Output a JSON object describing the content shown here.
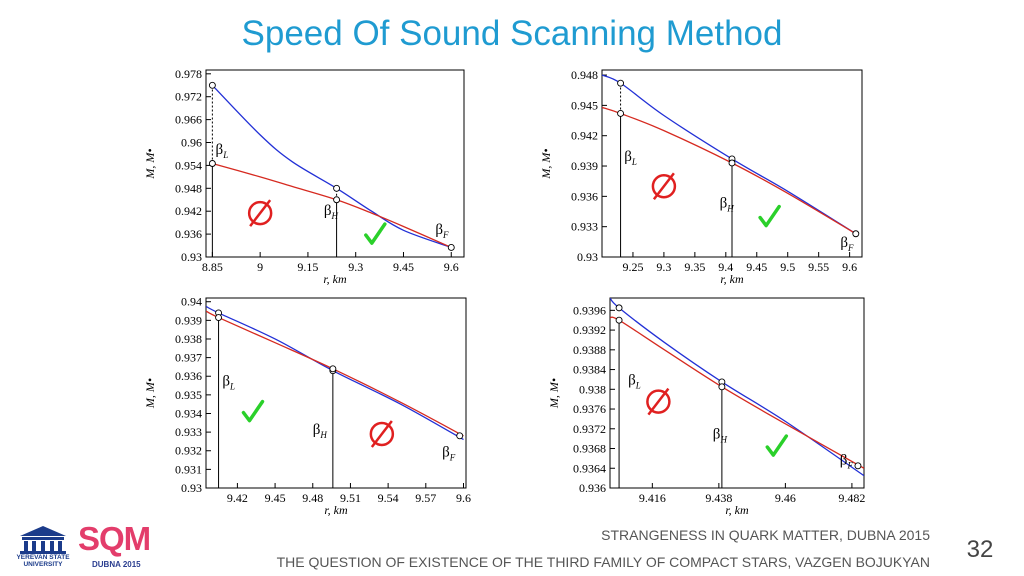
{
  "title": "Speed Of Sound Scanning Method",
  "footer_line1": "STRANGENESS IN QUARK MATTER,  DUBNA 2015",
  "footer_line2": "THE QUESTION OF EXISTENCE OF THE THIRD FAMILY OF COMPACT STARS, VAZGEN BOJUKYAN",
  "page_number": "32",
  "logos": {
    "ysu_text": "YEREVAN STATE UNIVERSITY",
    "sqm_text": "SQM",
    "sqm_sub": "DUBNA 2015"
  },
  "colors": {
    "title": "#1f9bd1",
    "curve_blue": "#2230d6",
    "curve_red": "#d62a20",
    "empty_set": "#e02020",
    "check": "#2ad02a"
  },
  "chart_data": [
    {
      "type": "line",
      "xlabel": "r, km",
      "ylabel": "M, M•",
      "xlim": [
        8.83,
        9.64
      ],
      "ylim": [
        0.93,
        0.979
      ],
      "x_ticks": [
        8.85,
        9,
        9.15,
        9.3,
        9.45,
        9.6
      ],
      "x_tick_labels": [
        "8.85",
        "9",
        "9.15",
        "9.3",
        "9.45",
        "9.6"
      ],
      "y_ticks": [
        0.93,
        0.936,
        0.942,
        0.948,
        0.954,
        0.96,
        0.966,
        0.972,
        0.978
      ],
      "y_tick_labels": [
        "0.93",
        "0.936",
        "0.942",
        "0.948",
        "0.954",
        "0.96",
        "0.966",
        "0.972",
        "0.978"
      ],
      "series": [
        {
          "color": "blue",
          "x": [
            8.85,
            9.0,
            9.1,
            9.24,
            9.35,
            9.45,
            9.6
          ],
          "y": [
            0.975,
            0.962,
            0.955,
            0.948,
            0.942,
            0.937,
            0.9325
          ]
        },
        {
          "color": "red",
          "x": [
            8.85,
            9.0,
            9.1,
            9.24,
            9.35,
            9.45,
            9.6
          ],
          "y": [
            0.9545,
            0.951,
            0.9485,
            0.945,
            0.9415,
            0.938,
            0.9325
          ]
        }
      ],
      "markers": [
        {
          "x": 8.85,
          "y": 0.975
        },
        {
          "x": 8.85,
          "y": 0.9545
        },
        {
          "x": 9.24,
          "y": 0.948
        },
        {
          "x": 9.24,
          "y": 0.945
        },
        {
          "x": 9.6,
          "y": 0.9325
        }
      ],
      "verticals": [
        {
          "x": 8.85,
          "y1": 0.9545,
          "y2": 0.975,
          "dashed": true
        },
        {
          "x": 8.85,
          "y1": 0.93,
          "y2": 0.9545,
          "dashed": false
        },
        {
          "x": 9.24,
          "y1": 0.945,
          "y2": 0.948,
          "dashed": true
        },
        {
          "x": 9.24,
          "y1": 0.93,
          "y2": 0.945,
          "dashed": false
        }
      ],
      "annotations": [
        {
          "text": "β",
          "sub": "L",
          "x": 8.86,
          "y": 0.957
        },
        {
          "text": "β",
          "sub": "H",
          "x": 9.2,
          "y": 0.941
        },
        {
          "text": "β",
          "sub": "F",
          "x": 9.55,
          "y": 0.936
        }
      ],
      "symbols": [
        {
          "kind": "empty",
          "x": 9.0,
          "y": 0.9415
        },
        {
          "kind": "check",
          "x": 9.36,
          "y": 0.936
        }
      ]
    },
    {
      "type": "line",
      "xlabel": "r, km",
      "ylabel": "M, M•",
      "xlim": [
        9.2,
        9.62
      ],
      "ylim": [
        0.93,
        0.9485
      ],
      "x_ticks": [
        9.25,
        9.3,
        9.35,
        9.4,
        9.45,
        9.5,
        9.55,
        9.6
      ],
      "x_tick_labels": [
        "9.25",
        "9.3",
        "9.35",
        "9.4",
        "9.45",
        "9.5",
        "9.55",
        "9.6"
      ],
      "y_ticks": [
        0.93,
        0.933,
        0.936,
        0.939,
        0.942,
        0.945,
        0.948
      ],
      "y_tick_labels": [
        "0.93",
        "0.933",
        "0.936",
        "0.939",
        "0.942",
        "0.945",
        "0.948"
      ],
      "series": [
        {
          "color": "blue",
          "x": [
            9.2,
            9.23,
            9.3,
            9.41,
            9.5,
            9.61
          ],
          "y": [
            0.948,
            0.9472,
            0.944,
            0.9397,
            0.9365,
            0.9323
          ]
        },
        {
          "color": "red",
          "x": [
            9.2,
            9.23,
            9.3,
            9.41,
            9.5,
            9.61
          ],
          "y": [
            0.9448,
            0.9442,
            0.9425,
            0.9393,
            0.9363,
            0.9323
          ]
        }
      ],
      "markers": [
        {
          "x": 9.23,
          "y": 0.9472
        },
        {
          "x": 9.23,
          "y": 0.9442
        },
        {
          "x": 9.41,
          "y": 0.9397
        },
        {
          "x": 9.41,
          "y": 0.9393
        },
        {
          "x": 9.61,
          "y": 0.9323
        }
      ],
      "verticals": [
        {
          "x": 9.23,
          "y1": 0.9442,
          "y2": 0.9472,
          "dashed": true
        },
        {
          "x": 9.23,
          "y1": 0.93,
          "y2": 0.9442,
          "dashed": false
        },
        {
          "x": 9.41,
          "y1": 0.93,
          "y2": 0.9393,
          "dashed": false
        }
      ],
      "annotations": [
        {
          "text": "β",
          "sub": "L",
          "x": 9.236,
          "y": 0.9395
        },
        {
          "text": "β",
          "sub": "H",
          "x": 9.39,
          "y": 0.9349
        },
        {
          "text": "β",
          "sub": "F",
          "x": 9.585,
          "y": 0.931
        }
      ],
      "symbols": [
        {
          "kind": "empty",
          "x": 9.3,
          "y": 0.937
        },
        {
          "kind": "check",
          "x": 9.47,
          "y": 0.934
        }
      ]
    },
    {
      "type": "line",
      "xlabel": "r, km",
      "ylabel": "M, M•",
      "xlim": [
        9.395,
        9.602
      ],
      "ylim": [
        0.93,
        0.9402
      ],
      "x_ticks": [
        9.42,
        9.45,
        9.48,
        9.51,
        9.54,
        9.57,
        9.6
      ],
      "x_tick_labels": [
        "9.42",
        "9.45",
        "9.48",
        "9.51",
        "9.54",
        "9.57",
        "9.6"
      ],
      "y_ticks": [
        0.93,
        0.931,
        0.932,
        0.933,
        0.934,
        0.935,
        0.936,
        0.937,
        0.938,
        0.939,
        0.94
      ],
      "y_tick_labels": [
        "0.93",
        "0.931",
        "0.932",
        "0.933",
        "0.934",
        "0.935",
        "0.936",
        "0.937",
        "0.938",
        "0.939",
        "0.94"
      ],
      "series": [
        {
          "color": "blue",
          "x": [
            9.395,
            9.405,
            9.45,
            9.496,
            9.55,
            9.6
          ],
          "y": [
            0.93975,
            0.9394,
            0.938,
            0.9363,
            0.9345,
            0.9326
          ]
        },
        {
          "color": "red",
          "x": [
            9.395,
            9.405,
            9.45,
            9.496,
            9.55,
            9.6
          ],
          "y": [
            0.9395,
            0.93915,
            0.9378,
            0.9364,
            0.9346,
            0.9328
          ]
        }
      ],
      "markers": [
        {
          "x": 9.405,
          "y": 0.9394
        },
        {
          "x": 9.405,
          "y": 0.93915
        },
        {
          "x": 9.496,
          "y": 0.9363
        },
        {
          "x": 9.496,
          "y": 0.9364
        },
        {
          "x": 9.597,
          "y": 0.9328
        }
      ],
      "verticals": [
        {
          "x": 9.405,
          "y1": 0.93,
          "y2": 0.93915,
          "dashed": false
        },
        {
          "x": 9.496,
          "y1": 0.93,
          "y2": 0.9363,
          "dashed": false
        }
      ],
      "annotations": [
        {
          "text": "β",
          "sub": "L",
          "x": 9.408,
          "y": 0.9355
        },
        {
          "text": "β",
          "sub": "H",
          "x": 9.48,
          "y": 0.9329
        },
        {
          "text": "β",
          "sub": "F",
          "x": 9.583,
          "y": 0.9317
        }
      ],
      "symbols": [
        {
          "kind": "check",
          "x": 9.432,
          "y": 0.9341
        },
        {
          "kind": "empty",
          "x": 9.535,
          "y": 0.9329
        }
      ]
    },
    {
      "type": "line",
      "xlabel": "r, km",
      "ylabel": "M, M•",
      "xlim": [
        9.402,
        9.486
      ],
      "ylim": [
        0.936,
        0.93985
      ],
      "x_ticks": [
        9.416,
        9.438,
        9.46,
        9.482
      ],
      "x_tick_labels": [
        "9.416",
        "9.438",
        "9.46",
        "9.482"
      ],
      "y_ticks": [
        0.936,
        0.9364,
        0.9368,
        0.9372,
        0.9376,
        0.938,
        0.9384,
        0.9388,
        0.9392,
        0.9396
      ],
      "y_tick_labels": [
        "0.936",
        "0.9364",
        "0.9368",
        "0.9372",
        "0.9376",
        "0.938",
        "0.9384",
        "0.9388",
        "0.9392",
        "0.9396"
      ],
      "series": [
        {
          "color": "blue",
          "x": [
            9.402,
            9.405,
            9.42,
            9.439,
            9.46,
            9.486
          ],
          "y": [
            0.93985,
            0.93965,
            0.93895,
            0.93815,
            0.93735,
            0.93625
          ]
        },
        {
          "color": "red",
          "x": [
            9.402,
            9.405,
            9.42,
            9.439,
            9.46,
            9.486
          ],
          "y": [
            0.93945,
            0.9394,
            0.9388,
            0.93805,
            0.9373,
            0.9364
          ]
        }
      ],
      "markers": [
        {
          "x": 9.405,
          "y": 0.93965
        },
        {
          "x": 9.405,
          "y": 0.9394
        },
        {
          "x": 9.439,
          "y": 0.93815
        },
        {
          "x": 9.439,
          "y": 0.93805
        },
        {
          "x": 9.484,
          "y": 0.93645
        }
      ],
      "verticals": [
        {
          "x": 9.405,
          "y1": 0.936,
          "y2": 0.9394,
          "dashed": false
        },
        {
          "x": 9.439,
          "y1": 0.936,
          "y2": 0.93805,
          "dashed": false
        }
      ],
      "annotations": [
        {
          "text": "β",
          "sub": "L",
          "x": 9.408,
          "y": 0.9381
        },
        {
          "text": "β",
          "sub": "H",
          "x": 9.436,
          "y": 0.937
        },
        {
          "text": "β",
          "sub": "F",
          "x": 9.478,
          "y": 0.93648
        }
      ],
      "symbols": [
        {
          "kind": "empty",
          "x": 9.418,
          "y": 0.93775
        },
        {
          "kind": "check",
          "x": 9.457,
          "y": 0.93685
        }
      ]
    }
  ]
}
